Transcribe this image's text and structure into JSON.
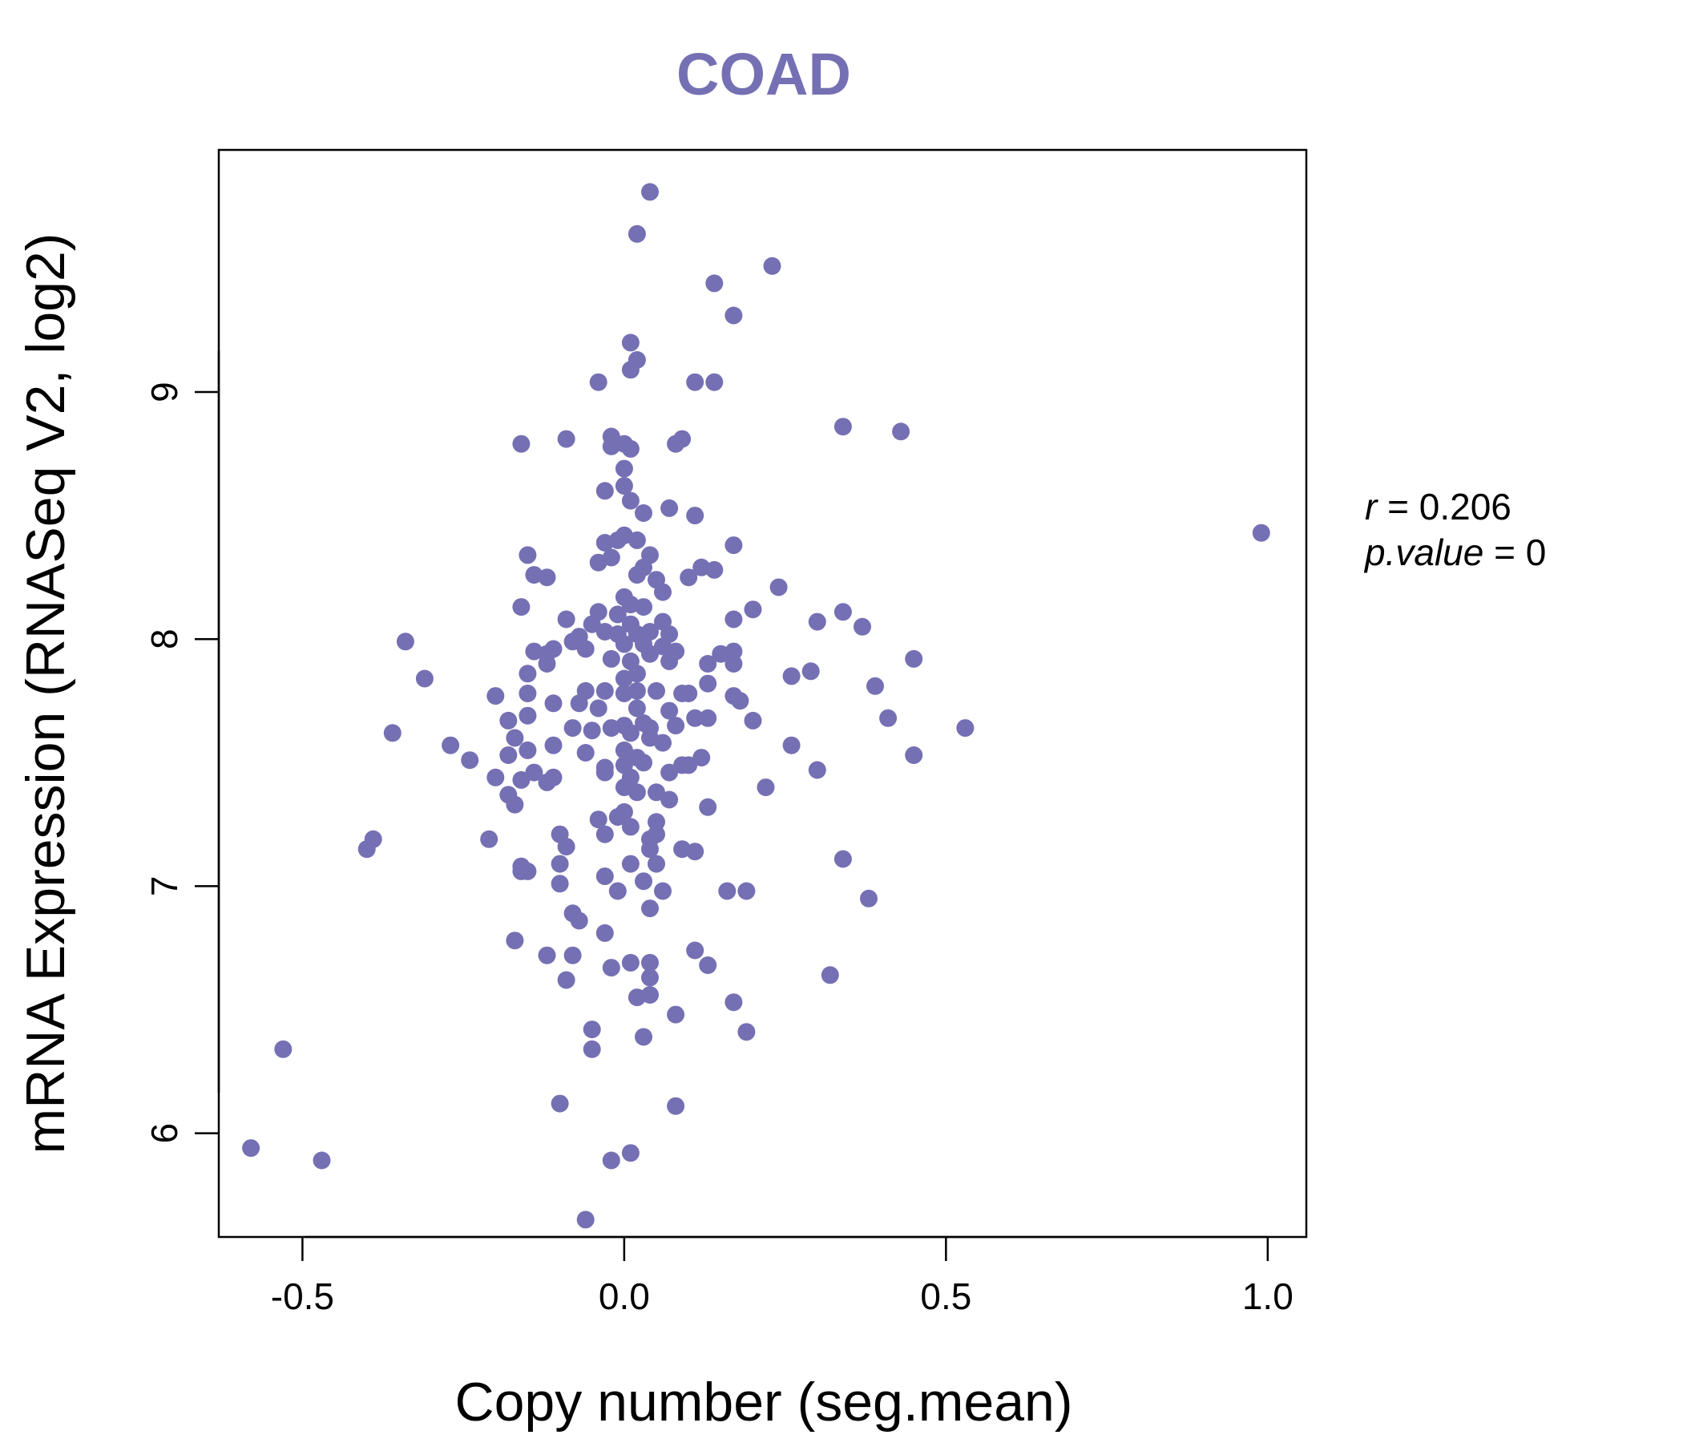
{
  "chart_data": {
    "type": "scatter",
    "title": "COAD",
    "xlabel": "Copy number (seg.mean)",
    "ylabel": "mRNA Expression (RNASeq V2, log2)",
    "xlim": [
      -0.63,
      1.06
    ],
    "ylim": [
      5.58,
      9.98
    ],
    "x_ticks": [
      -0.5,
      0.0,
      0.5,
      1.0
    ],
    "x_tick_labels": [
      "-0.5",
      "0.0",
      "0.5",
      "1.0"
    ],
    "y_ticks": [
      6,
      7,
      8,
      9
    ],
    "y_tick_labels": [
      "6",
      "7",
      "8",
      "9"
    ],
    "grid": false,
    "point_color": "#7570B3",
    "stats": {
      "r_label": "r",
      "r_value": "0.206",
      "p_label": "p.value",
      "p_value": "0"
    },
    "points": [
      [
        0.04,
        9.81
      ],
      [
        0.02,
        9.64
      ],
      [
        0.23,
        9.51
      ],
      [
        0.14,
        9.44
      ],
      [
        0.17,
        9.31
      ],
      [
        0.01,
        9.2
      ],
      [
        0.02,
        9.13
      ],
      [
        0.01,
        9.09
      ],
      [
        -0.04,
        9.04
      ],
      [
        0.11,
        9.04
      ],
      [
        0.14,
        9.04
      ],
      [
        0.34,
        8.86
      ],
      [
        0.43,
        8.84
      ],
      [
        -0.09,
        8.81
      ],
      [
        -0.16,
        8.79
      ],
      [
        0.09,
        8.81
      ],
      [
        0.08,
        8.79
      ],
      [
        -0.02,
        8.82
      ],
      [
        0.0,
        8.79
      ],
      [
        -0.02,
        8.78
      ],
      [
        0.01,
        8.77
      ],
      [
        0.0,
        8.69
      ],
      [
        0.0,
        8.62
      ],
      [
        -0.03,
        8.6
      ],
      [
        0.01,
        8.56
      ],
      [
        0.03,
        8.51
      ],
      [
        0.07,
        8.53
      ],
      [
        0.11,
        8.5
      ],
      [
        0.99,
        8.43
      ],
      [
        -0.03,
        8.39
      ],
      [
        -0.01,
        8.4
      ],
      [
        0.0,
        8.42
      ],
      [
        0.02,
        8.4
      ],
      [
        0.17,
        8.38
      ],
      [
        -0.15,
        8.34
      ],
      [
        0.04,
        8.34
      ],
      [
        -0.02,
        8.33
      ],
      [
        -0.04,
        8.31
      ],
      [
        0.03,
        8.29
      ],
      [
        0.12,
        8.29
      ],
      [
        0.14,
        8.28
      ],
      [
        -0.14,
        8.26
      ],
      [
        -0.12,
        8.25
      ],
      [
        0.02,
        8.26
      ],
      [
        0.05,
        8.24
      ],
      [
        0.1,
        8.25
      ],
      [
        0.24,
        8.21
      ],
      [
        0.06,
        8.19
      ],
      [
        0.0,
        8.17
      ],
      [
        -0.16,
        8.13
      ],
      [
        -0.04,
        8.11
      ],
      [
        -0.01,
        8.1
      ],
      [
        0.01,
        8.14
      ],
      [
        0.03,
        8.13
      ],
      [
        0.2,
        8.12
      ],
      [
        0.34,
        8.11
      ],
      [
        -0.09,
        8.08
      ],
      [
        -0.05,
        8.06
      ],
      [
        0.01,
        8.06
      ],
      [
        0.06,
        8.07
      ],
      [
        0.17,
        8.08
      ],
      [
        0.3,
        8.07
      ],
      [
        0.37,
        8.05
      ],
      [
        -0.03,
        8.03
      ],
      [
        -0.07,
        8.01
      ],
      [
        -0.01,
        8.02
      ],
      [
        0.02,
        8.02
      ],
      [
        0.04,
        8.03
      ],
      [
        0.07,
        8.02
      ],
      [
        -0.08,
        7.99
      ],
      [
        -0.06,
        7.96
      ],
      [
        0.0,
        7.98
      ],
      [
        0.03,
        7.98
      ],
      [
        0.06,
        7.97
      ],
      [
        -0.14,
        7.95
      ],
      [
        -0.12,
        7.94
      ],
      [
        -0.11,
        7.96
      ],
      [
        0.04,
        7.94
      ],
      [
        0.08,
        7.95
      ],
      [
        0.15,
        7.94
      ],
      [
        0.17,
        7.95
      ],
      [
        -0.34,
        7.99
      ],
      [
        0.45,
        7.92
      ],
      [
        -0.02,
        7.92
      ],
      [
        0.01,
        7.91
      ],
      [
        0.07,
        7.91
      ],
      [
        -0.12,
        7.9
      ],
      [
        0.13,
        7.9
      ],
      [
        0.17,
        7.9
      ],
      [
        0.29,
        7.87
      ],
      [
        -0.15,
        7.86
      ],
      [
        0.02,
        7.86
      ],
      [
        0.0,
        7.84
      ],
      [
        0.26,
        7.85
      ],
      [
        -0.31,
        7.84
      ],
      [
        0.39,
        7.81
      ],
      [
        0.13,
        7.82
      ],
      [
        -0.15,
        7.78
      ],
      [
        -0.2,
        7.77
      ],
      [
        -0.06,
        7.79
      ],
      [
        -0.03,
        7.79
      ],
      [
        0.0,
        7.78
      ],
      [
        0.02,
        7.79
      ],
      [
        0.05,
        7.79
      ],
      [
        0.09,
        7.78
      ],
      [
        0.1,
        7.78
      ],
      [
        0.17,
        7.77
      ],
      [
        0.18,
        7.75
      ],
      [
        -0.11,
        7.74
      ],
      [
        -0.07,
        7.74
      ],
      [
        -0.04,
        7.72
      ],
      [
        0.02,
        7.72
      ],
      [
        0.07,
        7.71
      ],
      [
        0.11,
        7.68
      ],
      [
        0.13,
        7.68
      ],
      [
        -0.15,
        7.69
      ],
      [
        -0.18,
        7.67
      ],
      [
        -0.02,
        7.64
      ],
      [
        0.0,
        7.65
      ],
      [
        0.03,
        7.66
      ],
      [
        0.04,
        7.64
      ],
      [
        0.08,
        7.65
      ],
      [
        0.2,
        7.67
      ],
      [
        0.41,
        7.68
      ],
      [
        0.53,
        7.64
      ],
      [
        -0.36,
        7.62
      ],
      [
        -0.17,
        7.6
      ],
      [
        -0.08,
        7.64
      ],
      [
        -0.05,
        7.63
      ],
      [
        0.01,
        7.62
      ],
      [
        0.04,
        7.6
      ],
      [
        -0.27,
        7.57
      ],
      [
        -0.15,
        7.55
      ],
      [
        -0.11,
        7.57
      ],
      [
        0.0,
        7.55
      ],
      [
        0.02,
        7.52
      ],
      [
        0.06,
        7.58
      ],
      [
        0.26,
        7.57
      ],
      [
        -0.24,
        7.51
      ],
      [
        -0.18,
        7.53
      ],
      [
        -0.06,
        7.54
      ],
      [
        0.0,
        7.49
      ],
      [
        0.03,
        7.5
      ],
      [
        0.09,
        7.49
      ],
      [
        0.12,
        7.52
      ],
      [
        0.45,
        7.53
      ],
      [
        -0.2,
        7.44
      ],
      [
        -0.16,
        7.43
      ],
      [
        -0.14,
        7.46
      ],
      [
        -0.12,
        7.42
      ],
      [
        -0.11,
        7.44
      ],
      [
        -0.03,
        7.48
      ],
      [
        -0.03,
        7.46
      ],
      [
        0.01,
        7.44
      ],
      [
        0.07,
        7.46
      ],
      [
        0.1,
        7.49
      ],
      [
        0.3,
        7.47
      ],
      [
        -0.18,
        7.37
      ],
      [
        -0.17,
        7.33
      ],
      [
        0.0,
        7.4
      ],
      [
        0.02,
        7.38
      ],
      [
        0.05,
        7.38
      ],
      [
        0.07,
        7.35
      ],
      [
        0.22,
        7.4
      ],
      [
        -0.04,
        7.27
      ],
      [
        -0.01,
        7.28
      ],
      [
        0.0,
        7.3
      ],
      [
        0.01,
        7.24
      ],
      [
        0.05,
        7.26
      ],
      [
        0.13,
        7.32
      ],
      [
        -0.03,
        7.21
      ],
      [
        -0.21,
        7.19
      ],
      [
        -0.1,
        7.21
      ],
      [
        0.04,
        7.19
      ],
      [
        0.05,
        7.21
      ],
      [
        -0.39,
        7.19
      ],
      [
        -0.4,
        7.15
      ],
      [
        -0.09,
        7.16
      ],
      [
        0.04,
        7.15
      ],
      [
        0.09,
        7.15
      ],
      [
        0.11,
        7.14
      ],
      [
        -0.16,
        7.08
      ],
      [
        -0.16,
        7.06
      ],
      [
        -0.15,
        7.06
      ],
      [
        -0.1,
        7.09
      ],
      [
        0.01,
        7.09
      ],
      [
        0.03,
        7.02
      ],
      [
        0.05,
        7.09
      ],
      [
        0.34,
        7.11
      ],
      [
        -0.1,
        7.01
      ],
      [
        -0.03,
        7.04
      ],
      [
        -0.01,
        6.98
      ],
      [
        0.06,
        6.98
      ],
      [
        0.16,
        6.98
      ],
      [
        0.19,
        6.98
      ],
      [
        0.38,
        6.95
      ],
      [
        0.04,
        6.91
      ],
      [
        -0.08,
        6.89
      ],
      [
        -0.07,
        6.86
      ],
      [
        -0.03,
        6.81
      ],
      [
        -0.17,
        6.78
      ],
      [
        0.11,
        6.74
      ],
      [
        -0.12,
        6.72
      ],
      [
        -0.08,
        6.72
      ],
      [
        0.13,
        6.68
      ],
      [
        0.04,
        6.69
      ],
      [
        0.01,
        6.69
      ],
      [
        -0.02,
        6.67
      ],
      [
        0.04,
        6.63
      ],
      [
        0.32,
        6.64
      ],
      [
        -0.09,
        6.62
      ],
      [
        0.04,
        6.56
      ],
      [
        0.02,
        6.55
      ],
      [
        0.17,
        6.53
      ],
      [
        0.08,
        6.48
      ],
      [
        -0.05,
        6.42
      ],
      [
        0.03,
        6.39
      ],
      [
        0.19,
        6.41
      ],
      [
        -0.05,
        6.34
      ],
      [
        -0.53,
        6.34
      ],
      [
        -0.1,
        6.12
      ],
      [
        0.08,
        6.11
      ],
      [
        -0.58,
        5.94
      ],
      [
        0.01,
        5.92
      ],
      [
        -0.47,
        5.89
      ],
      [
        -0.02,
        5.89
      ],
      [
        -0.06,
        5.65
      ]
    ]
  }
}
